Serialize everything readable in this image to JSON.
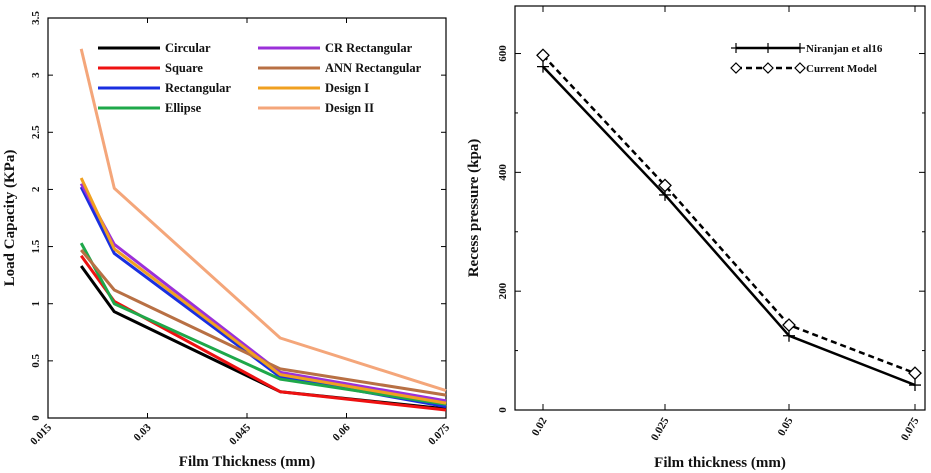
{
  "chart_data": [
    {
      "type": "line",
      "title": "",
      "xlabel": "Film Thickness (mm)",
      "ylabel": "Load Capacity (KPa)",
      "xlim": [
        0.015,
        0.075
      ],
      "ylim": [
        0,
        3.5
      ],
      "xticks": [
        "0.015",
        "0.03",
        "0.045",
        "0.06",
        "0.075"
      ],
      "yticks": [
        "0",
        "0.5",
        "1",
        "1.5",
        "2",
        "2.5",
        "3",
        "3.5"
      ],
      "x": [
        0.02,
        0.025,
        0.05,
        0.075
      ],
      "legend_position": "top",
      "series": [
        {
          "name": "Circular",
          "color": "#000000",
          "values": [
            1.33,
            0.93,
            0.23,
            0.08
          ]
        },
        {
          "name": "Square",
          "color": "#ee1111",
          "values": [
            1.42,
            1.02,
            0.23,
            0.07
          ]
        },
        {
          "name": "Rectangular",
          "color": "#1a2fe0",
          "values": [
            2.02,
            1.44,
            0.36,
            0.1
          ]
        },
        {
          "name": "Ellipse",
          "color": "#1fa84a",
          "values": [
            1.53,
            1.0,
            0.34,
            0.12
          ]
        },
        {
          "name": "CR Rectangular",
          "color": "#9b30d9",
          "values": [
            2.05,
            1.52,
            0.4,
            0.15
          ]
        },
        {
          "name": "ANN Rectangular",
          "color": "#b87044",
          "values": [
            1.47,
            1.12,
            0.43,
            0.2
          ]
        },
        {
          "name": "Design I",
          "color": "#f0a020",
          "values": [
            2.1,
            1.48,
            0.38,
            0.13
          ]
        },
        {
          "name": "Design II",
          "color": "#f4a67a",
          "values": [
            3.23,
            2.01,
            0.7,
            0.24
          ]
        }
      ]
    },
    {
      "type": "line",
      "title": "",
      "xlabel": "Film thickness (mm)",
      "ylabel": "Recess pressure (kpa)",
      "categories": [
        "0.02",
        "0.025",
        "0.05",
        "0.075"
      ],
      "ylim": [
        0,
        680
      ],
      "yticks": [
        "0",
        "200",
        "400",
        "600"
      ],
      "legend_position": "top-right",
      "series": [
        {
          "name": "Niranjan et al16",
          "color": "#000000",
          "style": "solid",
          "marker": "plus",
          "values": [
            578,
            362,
            125,
            42
          ]
        },
        {
          "name": "Current Model",
          "color": "#000000",
          "style": "dashed",
          "marker": "diamond",
          "values": [
            597,
            378,
            143,
            62
          ]
        }
      ]
    }
  ]
}
